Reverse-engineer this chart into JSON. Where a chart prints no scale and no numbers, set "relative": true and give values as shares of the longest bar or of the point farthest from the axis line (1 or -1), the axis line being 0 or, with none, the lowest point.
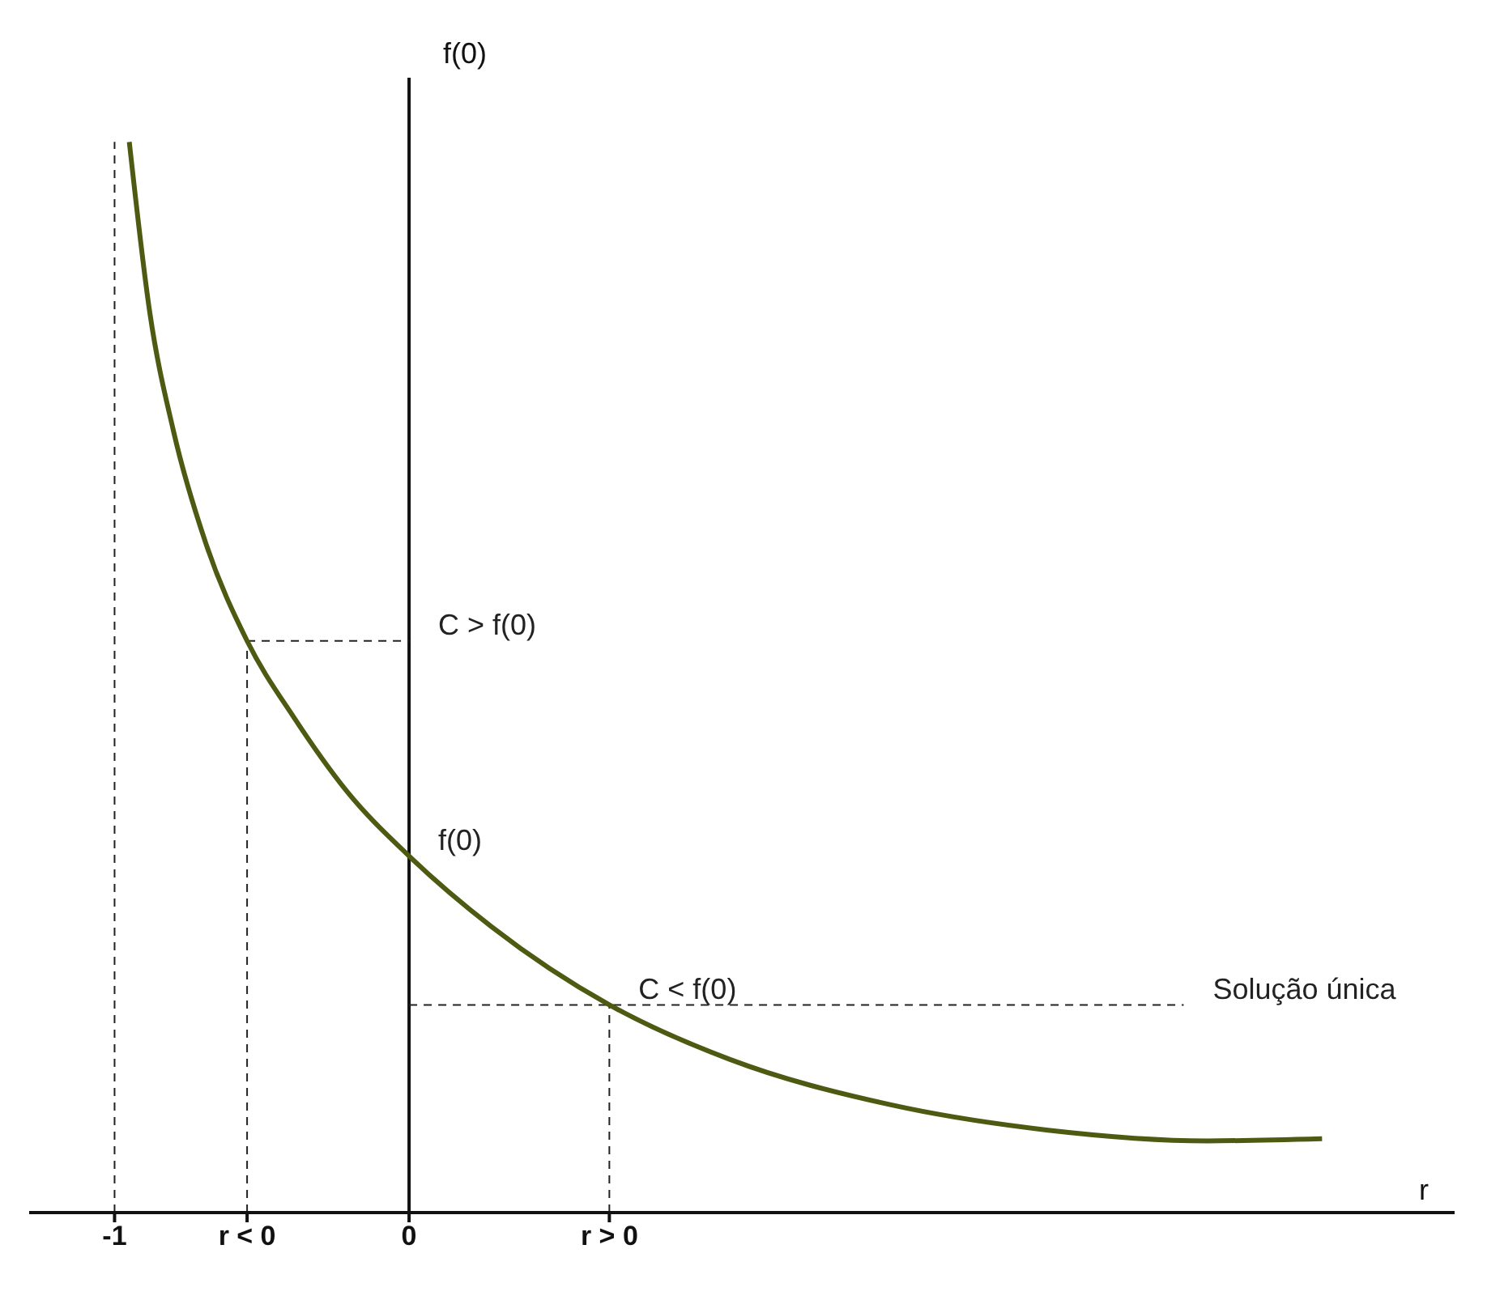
{
  "chart_data": {
    "type": "line",
    "relative": true,
    "xlabel": "r",
    "ylabel": "f(0)",
    "x": [
      -0.95,
      -0.88,
      -0.8,
      -0.69,
      -0.55,
      -0.39,
      -0.21,
      0,
      0.28,
      0.68,
      1.09,
      1.63,
      2.17,
      2.71,
      3.1
    ],
    "series": [
      {
        "color": "#4d5a12",
        "values": [
          1,
          0.84,
          0.73,
          0.625,
          0.534,
          0.462,
          0.393,
          0.333,
          0.267,
          0.194,
          0.143,
          0.101,
          0.077,
          0.067,
          0.069
        ]
      }
    ],
    "xlim": [
      -1.29,
      3.55
    ],
    "xticks": [
      -1,
      {
        "value": -0.55,
        "label": "r < 0"
      },
      0,
      {
        "value": 0.68,
        "label": "r > 0"
      }
    ],
    "ref_lines": [
      {
        "axis": "x",
        "value": -1,
        "line_style": "dashed"
      },
      {
        "axis": "x",
        "value": -0.55,
        "line_style": "dashed"
      },
      {
        "axis": "x",
        "value": 0.68,
        "line_style": "dashed"
      },
      {
        "axis": "y",
        "value": 0.534,
        "line_style": "dashed"
      },
      {
        "axis": "y",
        "value": 0.194,
        "line_style": "dashed"
      }
    ],
    "annotations": [
      {
        "text": "C > f(0)",
        "x": 0,
        "y": 0.534
      },
      {
        "text": "f(0)",
        "x": 0,
        "y": 0.333
      },
      {
        "text": "C < f(0)",
        "x": 0.68,
        "y": 0.194
      },
      {
        "text": "Solução única",
        "x": 2.63,
        "y": 0.194
      }
    ]
  }
}
